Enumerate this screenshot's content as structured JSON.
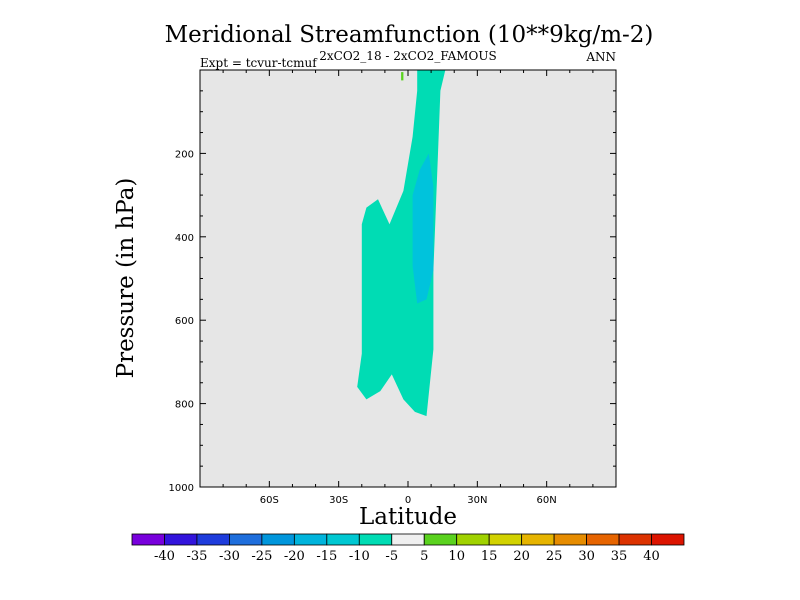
{
  "chart_data": {
    "type": "contour",
    "title": "Meridional Streamfunction (10**9kg/m-2)",
    "left_string": "Expt = tcvur-tcmuf",
    "center_string": "2xCO2_18 - 2xCO2_FAMOUS",
    "right_string": "ANN",
    "xlabel": "Latitude",
    "ylabel": "Pressure (in hPa)",
    "xlim": [
      -90,
      90
    ],
    "ylim": [
      1000,
      0
    ],
    "x_ticks": [
      -60,
      -30,
      0,
      30,
      60
    ],
    "x_tick_labels": [
      "60S",
      "30S",
      "0",
      "30N",
      "60N"
    ],
    "y_ticks": [
      200,
      400,
      600,
      800,
      1000
    ],
    "y_tick_labels": [
      "200",
      "400",
      "600",
      "800",
      "1000"
    ],
    "background_color": "#e6e6e6",
    "regions": [
      {
        "name": "-10 to -5",
        "color": "#00dcb4",
        "polygon": [
          [
            4,
            -20
          ],
          [
            17,
            -20
          ],
          [
            14,
            50
          ],
          [
            13,
            200
          ],
          [
            11,
            480
          ],
          [
            11,
            670
          ],
          [
            8,
            830
          ],
          [
            3,
            820
          ],
          [
            -2,
            790
          ],
          [
            -7,
            730
          ],
          [
            -12,
            770
          ],
          [
            -18,
            790
          ],
          [
            -22,
            760
          ],
          [
            -20,
            680
          ],
          [
            -20,
            370
          ],
          [
            -18,
            330
          ],
          [
            -13,
            310
          ],
          [
            -8,
            370
          ],
          [
            -2,
            290
          ],
          [
            2,
            160
          ],
          [
            4,
            50
          ]
        ]
      },
      {
        "name": "-15 to -10",
        "color": "#00c3dc",
        "polygon": [
          [
            9,
            200
          ],
          [
            11,
            280
          ],
          [
            11,
            480
          ],
          [
            8,
            550
          ],
          [
            4,
            560
          ],
          [
            2,
            470
          ],
          [
            2,
            300
          ],
          [
            5,
            240
          ]
        ]
      },
      {
        "name": "5 to 10",
        "color": "#5ad21e",
        "polygon": [
          [
            -3,
            5
          ],
          [
            -2,
            5
          ],
          [
            -2,
            25
          ],
          [
            -3,
            25
          ]
        ]
      }
    ],
    "colorbar": {
      "labels": [
        "-40",
        "-35",
        "-30",
        "-25",
        "-20",
        "-15",
        "-10",
        "-5",
        "5",
        "10",
        "15",
        "20",
        "25",
        "30",
        "35",
        "40"
      ],
      "colors": [
        "#7800dc",
        "#3214dc",
        "#1e3cdc",
        "#1e6edc",
        "#0096dc",
        "#00b4dc",
        "#00c8d2",
        "#00dcb4",
        "#f0f0f0",
        "#5ad21e",
        "#a0d200",
        "#d2d200",
        "#e6b400",
        "#e68c00",
        "#e66400",
        "#dc3200",
        "#dc1400"
      ]
    }
  }
}
